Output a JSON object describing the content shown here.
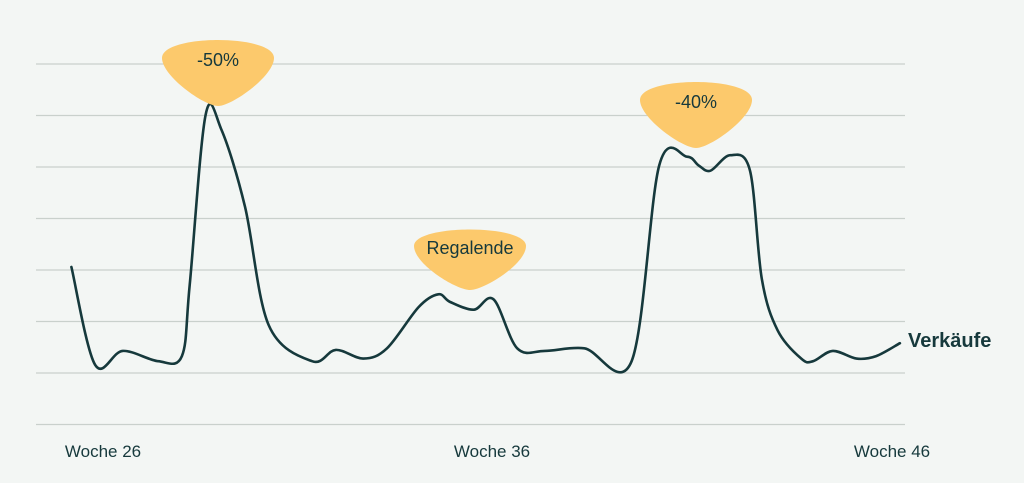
{
  "chart_data": {
    "type": "line",
    "title": "",
    "xlabel": "",
    "ylabel": "",
    "x_ticks": [
      "Woche 26",
      "Woche 36",
      "Woche 46"
    ],
    "series": [
      {
        "name": "Verkäufe",
        "x": [
          25.2,
          25.8,
          26.5,
          27.4,
          28.0,
          28.2,
          28.6,
          29.0,
          29.6,
          30.2,
          31.3,
          31.9,
          32.6,
          33.2,
          34.0,
          34.5,
          34.8,
          35.4,
          35.9,
          36.5,
          37.2,
          38.2,
          39.4,
          40.1,
          40.8,
          41.1,
          41.4,
          41.9,
          42.4,
          42.7,
          43.1,
          43.7,
          44.0,
          44.5,
          45.1,
          45.6,
          46.2
        ],
        "y": [
          2.03,
          0.13,
          0.4,
          0.2,
          0.3,
          1.7,
          4.98,
          4.7,
          3.2,
          0.9,
          0.2,
          0.42,
          0.25,
          0.45,
          1.25,
          1.5,
          1.35,
          1.2,
          1.4,
          0.45,
          0.4,
          0.45,
          0.2,
          4.0,
          4.17,
          4.0,
          3.9,
          4.2,
          3.9,
          1.8,
          0.8,
          0.25,
          0.2,
          0.4,
          0.25,
          0.3,
          0.55
        ]
      }
    ],
    "annotations": [
      {
        "text": "-50%",
        "x": 28.6
      },
      {
        "text": "Regalende",
        "x": 35.4
      },
      {
        "text": "-40%",
        "x": 41.9
      }
    ],
    "ylim": [
      -1,
      6
    ],
    "grid": true,
    "colors": {
      "line": "#16393c",
      "annotation": "#fcc96c",
      "grid": "#c9d0cc",
      "text": "#16393c",
      "background": "#f3f6f4"
    }
  }
}
